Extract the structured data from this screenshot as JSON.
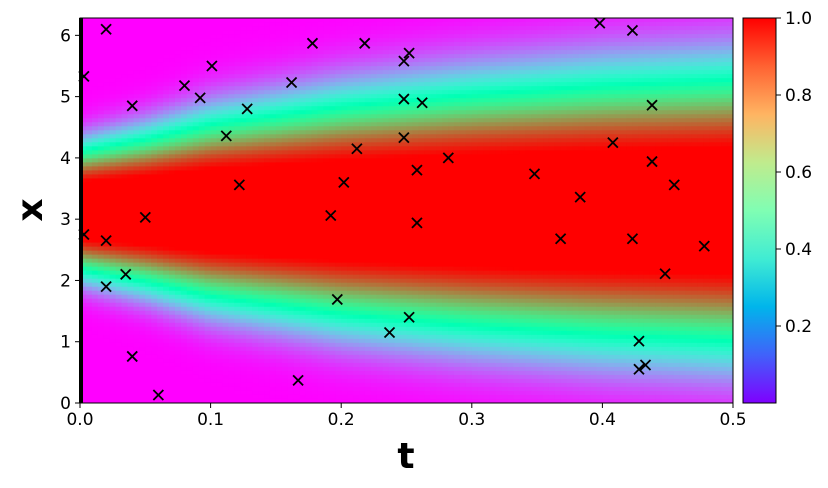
{
  "chart_data": {
    "type": "heatmap",
    "title": "",
    "xlabel": "t",
    "ylabel": "x",
    "xlim": [
      0,
      0.5
    ],
    "ylim": [
      0,
      6.283
    ],
    "x_ticks": [
      "0.0",
      "0.1",
      "0.2",
      "0.3",
      "0.4",
      "0.5"
    ],
    "x_tick_values": [
      0,
      0.1,
      0.2,
      0.3,
      0.4,
      0.5
    ],
    "y_ticks": [
      "0",
      "1",
      "2",
      "3",
      "4",
      "5",
      "6"
    ],
    "y_tick_values": [
      0,
      1,
      2,
      3,
      4,
      5,
      6
    ],
    "colormap": "rainbow",
    "colorbar": {
      "range": [
        0,
        1
      ],
      "ticks": [
        "0.2",
        "0.4",
        "0.6",
        "0.8",
        "1.0"
      ],
      "tick_values": [
        0.2,
        0.4,
        0.6,
        0.8,
        1.0
      ]
    },
    "field": {
      "description_values": "solution u(t,x) with a bump centered near x=3.14 that widens over time",
      "center": 3.14,
      "t_profile": [
        0,
        0.05,
        0.1,
        0.2,
        0.3,
        0.4,
        0.5
      ],
      "half_width": [
        1.0,
        1.2,
        1.45,
        1.75,
        1.95,
        2.1,
        2.2
      ]
    },
    "series": [
      {
        "type": "scatter",
        "marker": "x",
        "color": "#000000",
        "points": [
          [
            0.003,
            5.33
          ],
          [
            0.02,
            6.1
          ],
          [
            0.04,
            4.85
          ],
          [
            0.08,
            5.18
          ],
          [
            0.092,
            4.98
          ],
          [
            0.101,
            5.5
          ],
          [
            0.112,
            4.36
          ],
          [
            0.128,
            4.8
          ],
          [
            0.122,
            3.56
          ],
          [
            0.162,
            5.23
          ],
          [
            0.178,
            5.87
          ],
          [
            0.218,
            5.87
          ],
          [
            0.212,
            4.15
          ],
          [
            0.202,
            3.6
          ],
          [
            0.192,
            3.06
          ],
          [
            0.252,
            5.71
          ],
          [
            0.248,
            5.58
          ],
          [
            0.248,
            4.96
          ],
          [
            0.262,
            4.9
          ],
          [
            0.248,
            4.33
          ],
          [
            0.258,
            3.8
          ],
          [
            0.282,
            4.0
          ],
          [
            0.258,
            2.94
          ],
          [
            0.003,
            2.75
          ],
          [
            0.02,
            2.65
          ],
          [
            0.05,
            3.03
          ],
          [
            0.035,
            2.1
          ],
          [
            0.02,
            1.9
          ],
          [
            0.04,
            0.76
          ],
          [
            0.06,
            0.13
          ],
          [
            0.167,
            0.37
          ],
          [
            0.197,
            1.69
          ],
          [
            0.237,
            1.15
          ],
          [
            0.252,
            1.4
          ],
          [
            0.348,
            3.74
          ],
          [
            0.368,
            2.68
          ],
          [
            0.383,
            3.36
          ],
          [
            0.398,
            6.2
          ],
          [
            0.423,
            6.08
          ],
          [
            0.408,
            4.25
          ],
          [
            0.438,
            4.86
          ],
          [
            0.438,
            3.94
          ],
          [
            0.455,
            3.56
          ],
          [
            0.423,
            2.68
          ],
          [
            0.448,
            2.11
          ],
          [
            0.478,
            2.56
          ],
          [
            0.428,
            1.01
          ],
          [
            0.433,
            0.62
          ],
          [
            0.428,
            0.55
          ]
        ]
      }
    ]
  }
}
